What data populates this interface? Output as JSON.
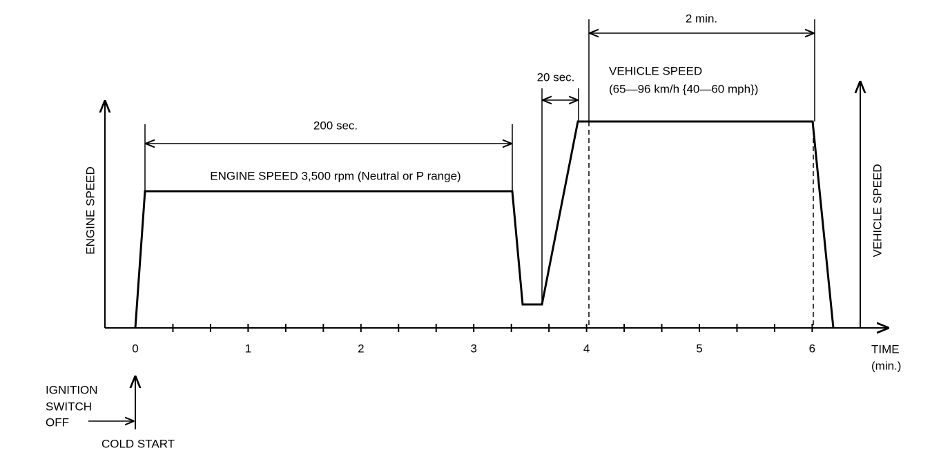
{
  "diagram": {
    "y_axis_left_label": "ENGINE SPEED",
    "y_axis_right_label": "VEHICLE SPEED",
    "x_axis_label": "TIME",
    "x_axis_unit": "(min.)",
    "x_tick_labels": [
      "0",
      "1",
      "2",
      "3",
      "4",
      "5",
      "6"
    ],
    "engine_phase": {
      "duration": "200 sec.",
      "label": "ENGINE SPEED 3,500 rpm (Neutral or P range)"
    },
    "accel_phase": {
      "duration": "20 sec."
    },
    "vehicle_phase": {
      "duration": "2 min.",
      "label": "VEHICLE SPEED",
      "range": "(65—96 km/h {40—60 mph})"
    },
    "ignition": {
      "lines": [
        "IGNITION",
        "SWITCH",
        "OFF"
      ],
      "start": "COLD START"
    }
  }
}
